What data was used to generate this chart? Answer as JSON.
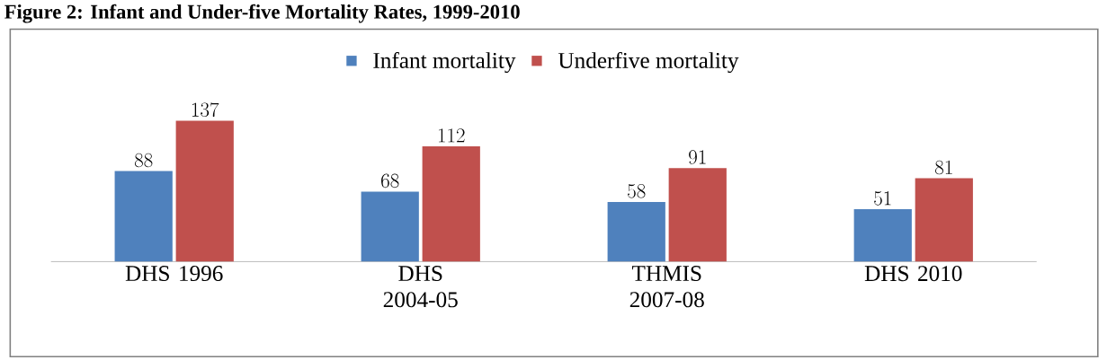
{
  "chart_data": {
    "type": "bar",
    "title": "Figure 2: Infant and Under-five Mortality Rates, 1999-2010",
    "categories": [
      "DHS 1996",
      "DHS 2004-05",
      "THMIS 2007-08",
      "DHS 2010"
    ],
    "series": [
      {
        "name": "Infant mortality",
        "color": "#4f81bd",
        "values": [
          88,
          68,
          58,
          51
        ]
      },
      {
        "name": "Underfive mortality",
        "color": "#c0504d",
        "values": [
          137,
          112,
          91,
          81
        ]
      }
    ],
    "data_labels": true,
    "legend": "top"
  }
}
